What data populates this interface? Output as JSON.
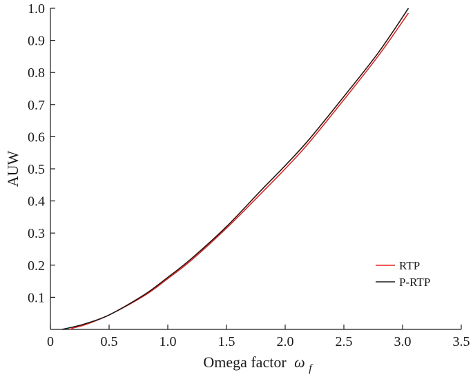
{
  "chart_data": {
    "type": "line",
    "title": "",
    "xlabel": "Omega factor",
    "xlabel_symbol": "ω",
    "xlabel_subscript": "f",
    "ylabel": "AUW",
    "xlim": [
      0,
      3.5
    ],
    "ylim": [
      0,
      1.0
    ],
    "xticks": [
      "0",
      "0.5",
      "1.0",
      "1.5",
      "2.0",
      "2.5",
      "3.0",
      "3.5"
    ],
    "yticks": [
      "0.1",
      "0.2",
      "0.3",
      "0.4",
      "0.5",
      "0.6",
      "0.7",
      "0.8",
      "0.9",
      "1.0"
    ],
    "grid": false,
    "legend_position": "bottom-right",
    "series": [
      {
        "name": "RTP",
        "color": "#e8231f",
        "x": [
          0.17,
          0.2,
          0.3,
          0.5,
          0.8,
          1.0,
          1.2,
          1.5,
          1.8,
          2.0,
          2.2,
          2.5,
          2.8,
          3.05
        ],
        "y": [
          0.0,
          0.005,
          0.015,
          0.045,
          0.105,
          0.158,
          0.215,
          0.315,
          0.425,
          0.5,
          0.58,
          0.715,
          0.855,
          0.985
        ]
      },
      {
        "name": "P-RTP",
        "color": "#1a1a1a",
        "x": [
          0.1,
          0.2,
          0.3,
          0.5,
          0.8,
          1.0,
          1.2,
          1.5,
          1.8,
          2.0,
          2.2,
          2.5,
          2.8,
          3.05
        ],
        "y": [
          0.0,
          0.008,
          0.018,
          0.045,
          0.108,
          0.162,
          0.22,
          0.32,
          0.435,
          0.51,
          0.59,
          0.725,
          0.865,
          1.0
        ]
      }
    ]
  }
}
